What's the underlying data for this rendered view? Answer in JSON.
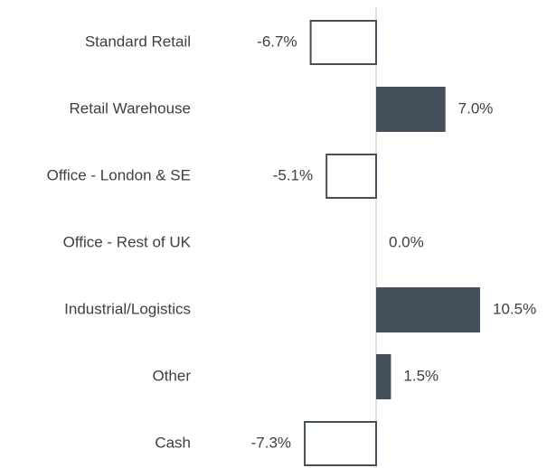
{
  "chart_data": {
    "type": "bar",
    "orientation": "horizontal",
    "categories": [
      "Standard Retail",
      "Retail Warehouse",
      "Office - London & SE",
      "Office - Rest of UK",
      "Industrial/Logistics",
      "Other",
      "Cash"
    ],
    "values": [
      -6.7,
      7.0,
      -5.1,
      0.0,
      10.5,
      1.5,
      -7.3
    ],
    "value_labels": [
      "-6.7%",
      "7.0%",
      "-5.1%",
      "0.0%",
      "10.5%",
      "1.5%",
      "-7.3%"
    ],
    "color": "#46505a"
  }
}
